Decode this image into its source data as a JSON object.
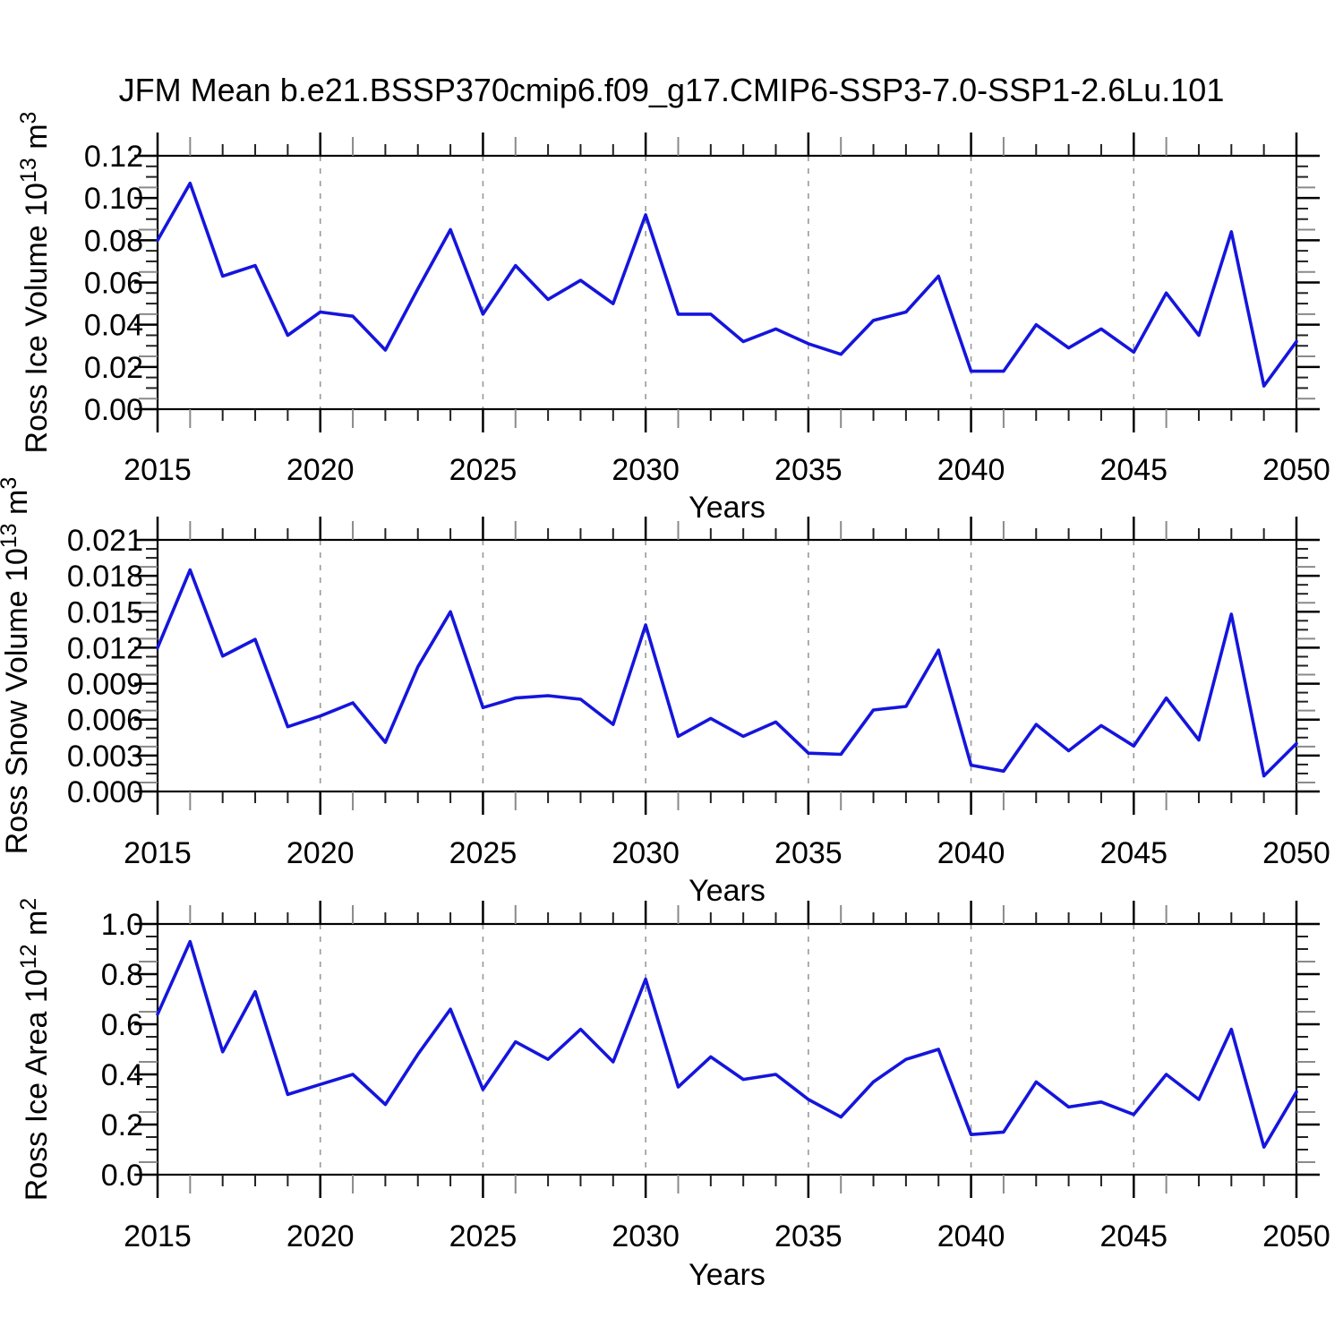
{
  "title": "JFM Mean b.e21.BSSP370cmip6.f09_g17.CMIP6-SSP3-7.0-SSP1-2.6Lu.101",
  "x_axis": {
    "label": "Years",
    "start": 2015,
    "end": 2050,
    "major_step": 5,
    "minor_step": 1,
    "grid_years": [
      2020,
      2025,
      2030,
      2035,
      2040,
      2045
    ],
    "major_tick_labels": [
      "2015",
      "2020",
      "2025",
      "2030",
      "2035",
      "2040",
      "2045",
      "2050"
    ]
  },
  "style": {
    "line_color": "#1515dd",
    "frame_color": "#000000",
    "grid_color": "#999999",
    "minor_tick_color": "#222222",
    "halfway_tick_color": "#8a8a8a",
    "text_color": "#000000",
    "background": "#ffffff"
  },
  "chart_data": [
    {
      "id": "ross-ice-volume",
      "type": "line",
      "title": "",
      "xlabel": "Years",
      "ylabel": "Ross Ice Volume 10^13 m^3",
      "ylabel_parts": {
        "base": "Ross Ice Volume 10",
        "exp": "13",
        "unit": "m",
        "unit_exp": "3"
      },
      "ylim": [
        0,
        0.12
      ],
      "y_major_step": 0.02,
      "y_minor_step": 0.005,
      "ytick_labels": [
        "0.00",
        "0.02",
        "0.04",
        "0.06",
        "0.08",
        "0.10",
        "0.12"
      ],
      "grid": "vertical-dashed",
      "legend": "none",
      "x": [
        2015,
        2016,
        2017,
        2018,
        2019,
        2020,
        2021,
        2022,
        2023,
        2024,
        2025,
        2026,
        2027,
        2028,
        2029,
        2030,
        2031,
        2032,
        2033,
        2034,
        2035,
        2036,
        2037,
        2038,
        2039,
        2040,
        2041,
        2042,
        2043,
        2044,
        2045,
        2046,
        2047,
        2048,
        2049,
        2050
      ],
      "values": [
        0.08,
        0.107,
        0.063,
        0.068,
        0.035,
        0.046,
        0.044,
        0.028,
        0.057,
        0.085,
        0.045,
        0.068,
        0.052,
        0.061,
        0.05,
        0.092,
        0.045,
        0.045,
        0.032,
        0.038,
        0.031,
        0.026,
        0.042,
        0.046,
        0.063,
        0.018,
        0.018,
        0.04,
        0.029,
        0.038,
        0.027,
        0.055,
        0.035,
        0.084,
        0.011,
        0.032
      ]
    },
    {
      "id": "ross-snow-volume",
      "type": "line",
      "title": "",
      "xlabel": "Years",
      "ylabel": "Ross Snow Volume 10^13 m^3",
      "ylabel_parts": {
        "base": "Ross Snow Volume 10",
        "exp": "13",
        "unit": "m",
        "unit_exp": "3"
      },
      "ylim": [
        0,
        0.021
      ],
      "y_major_step": 0.003,
      "y_minor_step": 0.00075,
      "ytick_labels": [
        "0.000",
        "0.003",
        "0.006",
        "0.009",
        "0.012",
        "0.015",
        "0.018",
        "0.021"
      ],
      "grid": "vertical-dashed",
      "legend": "none",
      "x": [
        2015,
        2016,
        2017,
        2018,
        2019,
        2020,
        2021,
        2022,
        2023,
        2024,
        2025,
        2026,
        2027,
        2028,
        2029,
        2030,
        2031,
        2032,
        2033,
        2034,
        2035,
        2036,
        2037,
        2038,
        2039,
        2040,
        2041,
        2042,
        2043,
        2044,
        2045,
        2046,
        2047,
        2048,
        2049,
        2050
      ],
      "values": [
        0.012,
        0.0185,
        0.0113,
        0.0127,
        0.0054,
        0.0063,
        0.0074,
        0.0041,
        0.0104,
        0.015,
        0.007,
        0.0078,
        0.008,
        0.0077,
        0.0056,
        0.0139,
        0.0046,
        0.0061,
        0.0046,
        0.0058,
        0.0032,
        0.0031,
        0.0068,
        0.0071,
        0.0118,
        0.0022,
        0.0017,
        0.0056,
        0.0034,
        0.0055,
        0.0038,
        0.0078,
        0.0043,
        0.0148,
        0.0013,
        0.004
      ]
    },
    {
      "id": "ross-ice-area",
      "type": "line",
      "title": "",
      "xlabel": "Years",
      "ylabel": "Ross Ice Area 10^12 m^2",
      "ylabel_parts": {
        "base": "Ross Ice Area 10",
        "exp": "12",
        "unit": "m",
        "unit_exp": "2"
      },
      "ylim": [
        0,
        1.0
      ],
      "y_major_step": 0.2,
      "y_minor_step": 0.05,
      "ytick_labels": [
        "0.0",
        "0.2",
        "0.4",
        "0.6",
        "0.8",
        "1.0"
      ],
      "grid": "vertical-dashed",
      "legend": "none",
      "x": [
        2015,
        2016,
        2017,
        2018,
        2019,
        2020,
        2021,
        2022,
        2023,
        2024,
        2025,
        2026,
        2027,
        2028,
        2029,
        2030,
        2031,
        2032,
        2033,
        2034,
        2035,
        2036,
        2037,
        2038,
        2039,
        2040,
        2041,
        2042,
        2043,
        2044,
        2045,
        2046,
        2047,
        2048,
        2049,
        2050
      ],
      "values": [
        0.64,
        0.93,
        0.49,
        0.73,
        0.32,
        0.36,
        0.4,
        0.28,
        0.48,
        0.66,
        0.34,
        0.53,
        0.46,
        0.58,
        0.45,
        0.78,
        0.35,
        0.47,
        0.38,
        0.4,
        0.3,
        0.23,
        0.37,
        0.46,
        0.5,
        0.16,
        0.17,
        0.37,
        0.27,
        0.29,
        0.24,
        0.4,
        0.3,
        0.58,
        0.11,
        0.33
      ]
    }
  ]
}
